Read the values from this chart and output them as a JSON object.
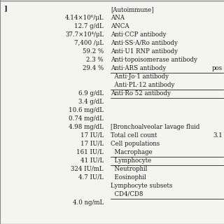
{
  "left_col": [
    "",
    "4.14×10⁶/μL",
    "12.7 g/dL",
    "37.7×10⁴/μL",
    "7,400 /μL",
    "59.2 %",
    "2.3 %",
    "29.4 %",
    "",
    "",
    "6.9 g/dL",
    "3.4 g/dL",
    "10.6 mg/dL",
    "0.74 mg/dL",
    "4.98 mg/dL",
    "17 IU/L",
    "17 IU/L",
    "161 IU/L",
    "41 IU/L",
    "324 IU/mL",
    "4.7 IU/L",
    "",
    "",
    "4.0 ng/mL"
  ],
  "right_col": [
    "[Autoimmune]",
    "ANA",
    "ANCA",
    "Anti·CCP antibody",
    "Anti·SS·A/Ro antibody",
    "Anti·U1 RNP antibody",
    "Anti·topoisomerase antibody",
    "Anti·ARS antibody",
    "  Anti·Jo·1 antibody",
    "  Anti·PL·12 antibody",
    "Anti·Ro 52 antibody",
    "",
    "",
    "",
    "[Bronchoalveolar lavage fluid",
    "Total cell count",
    "Cell populations",
    "  Macrophage",
    "  Lymphocyte",
    "  Neutrophil",
    "  Eosinophil",
    "Lymphocyte subsets",
    "  CD4/CD8",
    ""
  ],
  "right_extra": [
    "",
    "",
    "",
    "",
    "",
    "",
    "",
    "pos",
    "",
    "",
    "",
    "",
    "",
    "",
    "",
    "3.1",
    "",
    "",
    "",
    "",
    "",
    "",
    "",
    ""
  ],
  "underline_right_rows": [
    7,
    9,
    10,
    17,
    18,
    22
  ],
  "bg_color": "#f5f5f0",
  "text_color": "#1a1a1a",
  "border_color": "#888888",
  "left_bracket_text": "]"
}
